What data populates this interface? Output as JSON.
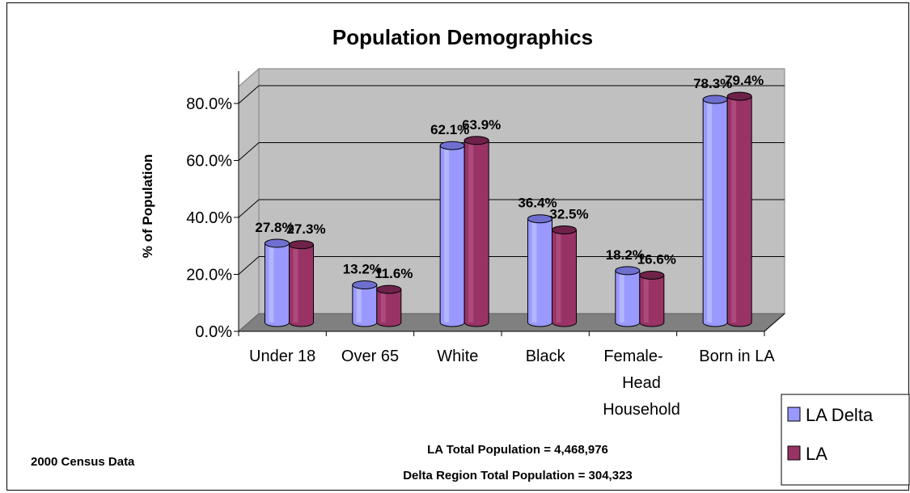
{
  "chart_data": {
    "type": "bar",
    "title": "Population Demographics",
    "ylabel": "% of Population",
    "xlabel": "",
    "categories": [
      "Under 18",
      "Over 65",
      "White",
      "Black",
      "Female-Head Household",
      "Born in LA"
    ],
    "category_label_lines": [
      [
        "Under 18"
      ],
      [
        "Over 65"
      ],
      [
        "White"
      ],
      [
        "Black"
      ],
      [
        "Female-",
        "Head",
        "Household"
      ],
      [
        "Born in LA"
      ]
    ],
    "series": [
      {
        "name": "LA Delta",
        "values": [
          27.8,
          13.2,
          62.1,
          36.4,
          18.2,
          78.3
        ],
        "color": "#9999ff",
        "labels": [
          "27.8%",
          "13.2%",
          "62.1%",
          "36.4%",
          "18.2%",
          "78.3%"
        ]
      },
      {
        "name": "LA",
        "values": [
          27.3,
          11.6,
          63.9,
          32.5,
          16.6,
          79.4
        ],
        "color": "#993366",
        "labels": [
          "27.3%",
          "11.6%",
          "63.9%",
          "32.5%",
          "16.6%",
          "79.4%"
        ]
      }
    ],
    "yticks": [
      "0.0%",
      "20.0%",
      "40.0%",
      "60.0%",
      "80.0%"
    ],
    "ytick_values": [
      0,
      20,
      40,
      60,
      80
    ],
    "ylim": [
      0,
      80
    ],
    "grid": true,
    "legend_position": "bottom-right",
    "style": "3d-cylinder"
  },
  "notes": {
    "source": "2000 Census Data",
    "la_total": "LA Total Population = 4,468,976",
    "delta_total": "Delta Region Total Population = 304,323"
  }
}
